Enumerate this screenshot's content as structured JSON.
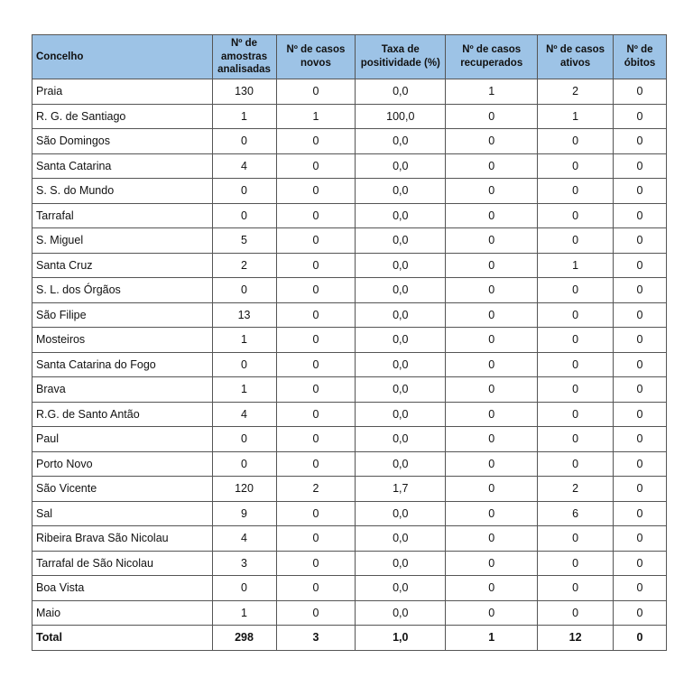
{
  "headers": [
    "Concelho",
    "Nº de amostras analisadas",
    "Nº de casos novos",
    "Taxa de positividade (%)",
    "Nº de casos recuperados",
    "Nº de casos ativos",
    "Nº de óbitos"
  ],
  "rows": [
    [
      "Praia",
      "130",
      "0",
      "0,0",
      "1",
      "2",
      "0"
    ],
    [
      "R. G. de Santiago",
      "1",
      "1",
      "100,0",
      "0",
      "1",
      "0"
    ],
    [
      "São Domingos",
      "0",
      "0",
      "0,0",
      "0",
      "0",
      "0"
    ],
    [
      "Santa Catarina",
      "4",
      "0",
      "0,0",
      "0",
      "0",
      "0"
    ],
    [
      "S. S. do Mundo",
      "0",
      "0",
      "0,0",
      "0",
      "0",
      "0"
    ],
    [
      "Tarrafal",
      "0",
      "0",
      "0,0",
      "0",
      "0",
      "0"
    ],
    [
      "S. Miguel",
      "5",
      "0",
      "0,0",
      "0",
      "0",
      "0"
    ],
    [
      "Santa Cruz",
      "2",
      "0",
      "0,0",
      "0",
      "1",
      "0"
    ],
    [
      "S. L. dos Órgãos",
      "0",
      "0",
      "0,0",
      "0",
      "0",
      "0"
    ],
    [
      "São Filipe",
      "13",
      "0",
      "0,0",
      "0",
      "0",
      "0"
    ],
    [
      "Mosteiros",
      "1",
      "0",
      "0,0",
      "0",
      "0",
      "0"
    ],
    [
      "Santa Catarina do Fogo",
      "0",
      "0",
      "0,0",
      "0",
      "0",
      "0"
    ],
    [
      "Brava",
      "1",
      "0",
      "0,0",
      "0",
      "0",
      "0"
    ],
    [
      "R.G. de Santo Antão",
      "4",
      "0",
      "0,0",
      "0",
      "0",
      "0"
    ],
    [
      "Paul",
      "0",
      "0",
      "0,0",
      "0",
      "0",
      "0"
    ],
    [
      "Porto Novo",
      "0",
      "0",
      "0,0",
      "0",
      "0",
      "0"
    ],
    [
      "São Vicente",
      "120",
      "2",
      "1,7",
      "0",
      "2",
      "0"
    ],
    [
      "Sal",
      "9",
      "0",
      "0,0",
      "0",
      "6",
      "0"
    ],
    [
      "Ribeira Brava São Nicolau",
      "4",
      "0",
      "0,0",
      "0",
      "0",
      "0"
    ],
    [
      "Tarrafal de São Nicolau",
      "3",
      "0",
      "0,0",
      "0",
      "0",
      "0"
    ],
    [
      "Boa Vista",
      "0",
      "0",
      "0,0",
      "0",
      "0",
      "0"
    ],
    [
      "Maio",
      "1",
      "0",
      "0,0",
      "0",
      "0",
      "0"
    ]
  ],
  "total": [
    "Total",
    "298",
    "3",
    "1,0",
    "1",
    "12",
    "0"
  ]
}
